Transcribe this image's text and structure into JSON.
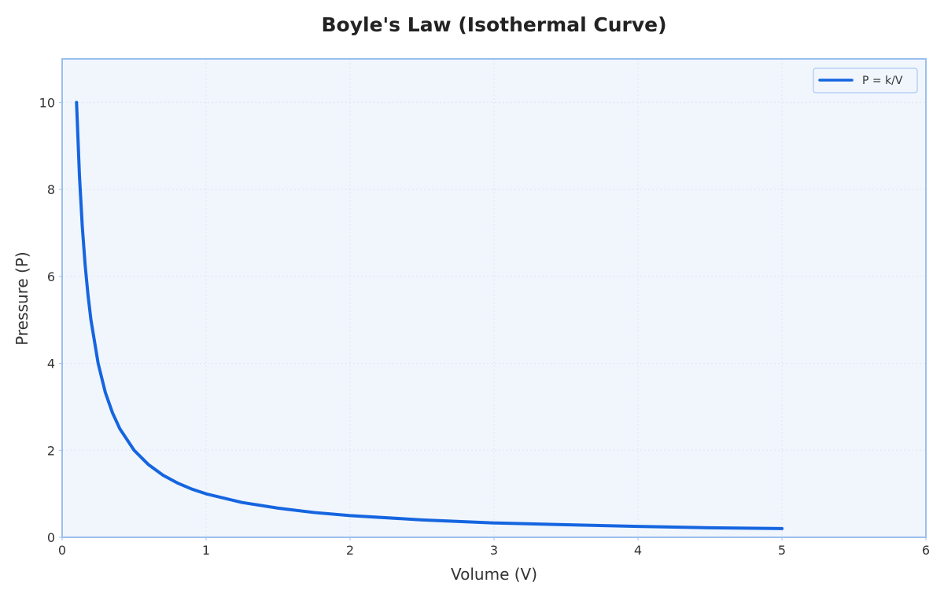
{
  "chart_data": {
    "type": "line",
    "title": "Boyle's Law (Isothermal Curve)",
    "xlabel": "Volume (V)",
    "ylabel": "Pressure (P)",
    "xlim": [
      0,
      6
    ],
    "ylim": [
      0,
      11
    ],
    "x_ticks": [
      "0",
      "1",
      "2",
      "3",
      "4",
      "5",
      "6"
    ],
    "y_ticks": [
      "0",
      "2",
      "4",
      "6",
      "8",
      "10"
    ],
    "grid": true,
    "legend_position": "top-right",
    "series": [
      {
        "name": "P = k/V",
        "color": "#1565e0",
        "x": [
          0.1,
          0.12,
          0.14,
          0.16,
          0.18,
          0.2,
          0.25,
          0.3,
          0.35,
          0.4,
          0.5,
          0.6,
          0.7,
          0.8,
          0.9,
          1.0,
          1.25,
          1.5,
          1.75,
          2.0,
          2.5,
          3.0,
          3.5,
          4.0,
          4.5,
          5.0
        ],
        "y": [
          10.0,
          8.33,
          7.14,
          6.25,
          5.56,
          5.0,
          4.0,
          3.33,
          2.86,
          2.5,
          2.0,
          1.67,
          1.43,
          1.25,
          1.11,
          1.0,
          0.8,
          0.67,
          0.57,
          0.5,
          0.4,
          0.33,
          0.29,
          0.25,
          0.22,
          0.2
        ]
      }
    ]
  },
  "colors": {
    "plot_background": "#f1f6fd",
    "frame": "#9bbfee",
    "grid": "#dce6f3"
  }
}
